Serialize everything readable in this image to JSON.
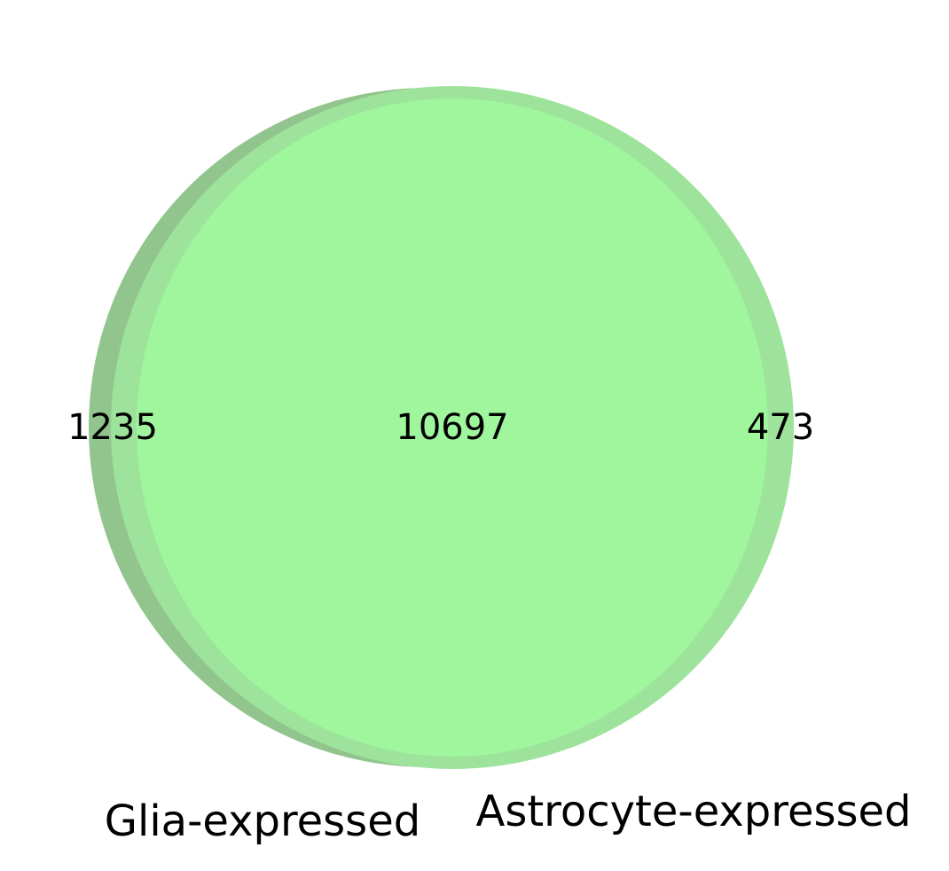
{
  "venn": {
    "sets": [
      {
        "label": "Glia-expressed",
        "color": "#92c58e"
      },
      {
        "label": "Astrocyte-expressed",
        "color": "#9de39b"
      }
    ],
    "regions": {
      "glia_only": "1235",
      "intersection": "10697",
      "astrocyte_only": "473"
    },
    "intersection_color": "#9ff69d"
  }
}
